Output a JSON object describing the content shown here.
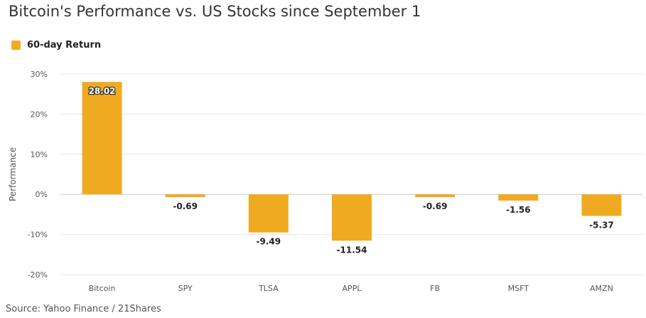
{
  "title": "Bitcoin's Performance vs. US Stocks since September 1",
  "source": "Source: Yahoo Finance / 21Shares",
  "colors": {
    "bar": "#f0aa22",
    "grid": "#e6e6e6",
    "zero_line": "#cccccc"
  },
  "chart_data": {
    "type": "bar",
    "categories": [
      "Bitcoin",
      "SPY",
      "TLSA",
      "APPL",
      "FB",
      "MSFT",
      "AMZN"
    ],
    "series": [
      {
        "name": "60-day Return",
        "values": [
          28.02,
          -0.69,
          -9.49,
          -11.54,
          -0.69,
          -1.56,
          -5.37
        ]
      }
    ],
    "data_labels": [
      "28.02",
      "-0.69",
      "-9.49",
      "-11.54",
      "-0.69",
      "-1.56",
      "-5.37"
    ],
    "ylabel": "Performance",
    "xlabel": "",
    "ylim": [
      -20,
      30
    ],
    "yticks": [
      -20,
      -10,
      0,
      10,
      20,
      30
    ],
    "ytick_labels": [
      "-20%",
      "-10%",
      "0%",
      "10%",
      "20%",
      "30%"
    ],
    "grid": true,
    "legend_position": "top-left"
  }
}
